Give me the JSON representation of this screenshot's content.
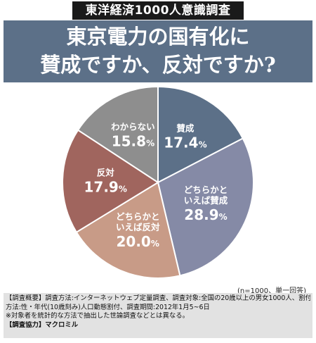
{
  "header_tag": "東洋経済1000人意識調査",
  "title": {
    "line1": "東京電力の国有化に",
    "line2": "賛成ですか、反対ですか?"
  },
  "chart_data": {
    "type": "pie",
    "slices": [
      {
        "label_lines": [
          "賛成"
        ],
        "value": 17.4,
        "color": "#5c7088"
      },
      {
        "label_lines": [
          "どちらかと",
          "いえば賛成"
        ],
        "value": 28.9,
        "color": "#858aa6"
      },
      {
        "label_lines": [
          "どちらかと",
          "いえば反対"
        ],
        "value": 20.0,
        "color": "#c89b87"
      },
      {
        "label_lines": [
          "反対"
        ],
        "value": 17.9,
        "color": "#a0655e"
      },
      {
        "label_lines": [
          "わからない"
        ],
        "value": 15.8,
        "color": "#8e8e8e"
      }
    ],
    "unit": "%",
    "start_direction": "12 o'clock, clockwise"
  },
  "note": "(n=1000、単一回答)",
  "footer": {
    "line1": "【調査概要】調査方法:インターネットウェブ定量調査、調査対象:全国の20歳以上の男女1000人、割付",
    "line2": "方法:性・年代(10歳刻み)人口動態割付、調査期間:2012年1月5~6日",
    "line3": "※対象者を統計的な方法で抽出した世論調査などとは異なる。",
    "cooperation_label": "【調査協力】",
    "cooperation_value": "マクロミル"
  }
}
